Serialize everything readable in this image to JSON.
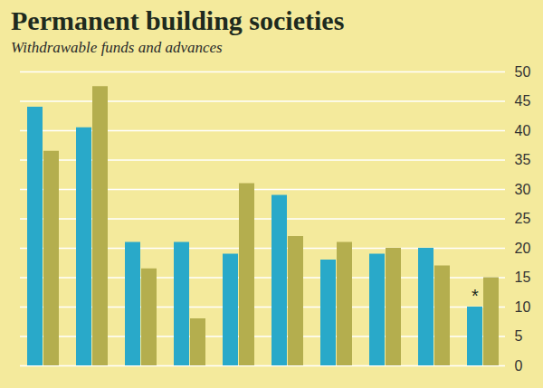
{
  "chart_data": {
    "type": "bar",
    "title": "Permanent building societies",
    "subtitle": "Withdrawable funds and advances",
    "categories": [
      null,
      null,
      null,
      null,
      null,
      null,
      null,
      null,
      null,
      null
    ],
    "series": [
      {
        "color": "#29a9c9",
        "values": [
          44,
          40.5,
          21,
          21,
          19,
          29,
          18,
          19,
          20,
          10
        ]
      },
      {
        "color": "#b4ae4e",
        "values": [
          36.5,
          47.5,
          16.5,
          8,
          31,
          22,
          21,
          20,
          17,
          15
        ]
      }
    ],
    "ylim": [
      0,
      50
    ],
    "yticks": [
      0,
      5,
      10,
      15,
      20,
      25,
      30,
      35,
      40,
      45,
      50
    ],
    "grid": true,
    "annotations": [
      {
        "text": "*",
        "series": 0,
        "category": 9
      }
    ]
  }
}
